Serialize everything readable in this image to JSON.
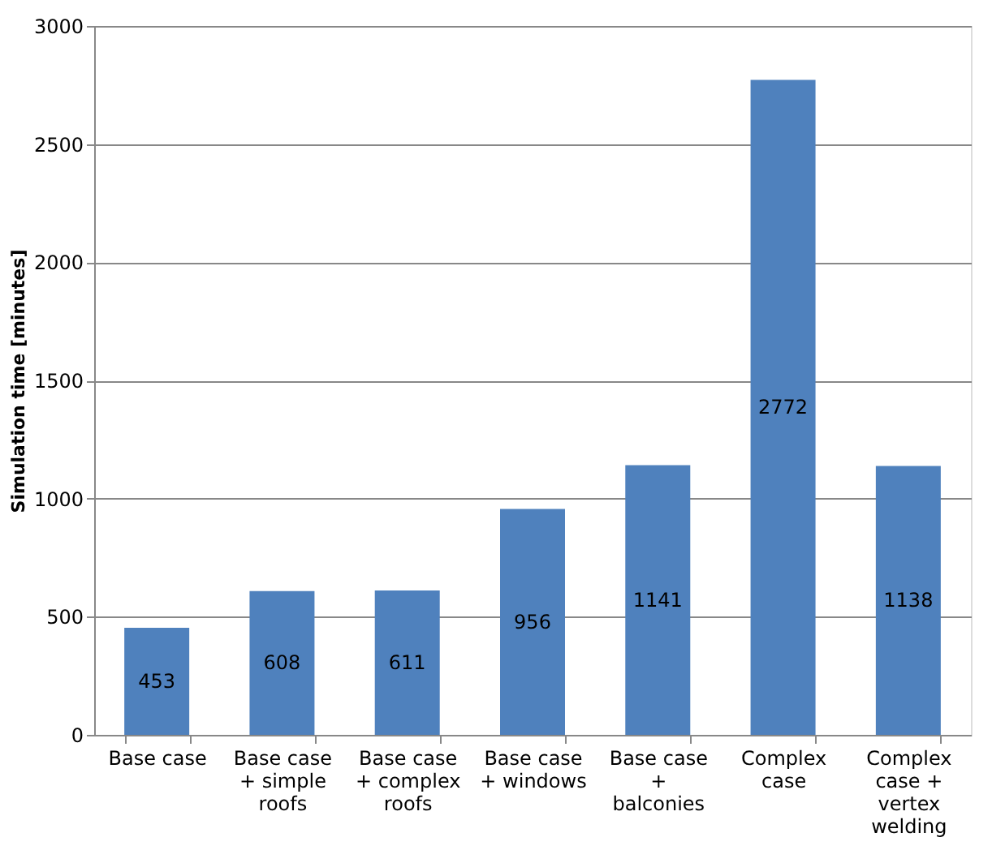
{
  "chart_data": {
    "type": "bar",
    "ylabel": "Simulation time [minutes]",
    "categories": [
      "Base case",
      "Base case + simple roofs",
      "Base case + complex roofs",
      "Base case + windows",
      "Base case + balconies",
      "Complex case",
      "Complex case + vertex welding"
    ],
    "values": [
      453,
      608,
      611,
      956,
      1141,
      2772,
      1138
    ],
    "color": "#4f81bd",
    "data_labels": true,
    "ylim": [
      0,
      3000
    ],
    "yticks": [
      0,
      500,
      1000,
      1500,
      2000,
      2500,
      3000
    ],
    "grid": "y"
  }
}
